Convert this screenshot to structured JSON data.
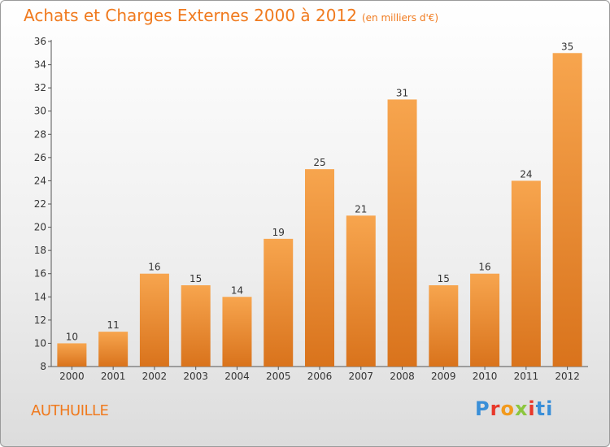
{
  "title": "Achats et Charges Externes 2000 à 2012",
  "subtitle": "(en milliers d'€)",
  "commune": "AUTHUILLE",
  "logo": {
    "p1": "P",
    "p2": "r",
    "p3": "o",
    "p4": "x",
    "p5": "i",
    "p6": "ti"
  },
  "colors": {
    "accent": "#f07a1e",
    "bar_top": "#f7a54e",
    "bar_bottom": "#d9731c"
  },
  "chart_data": {
    "type": "bar",
    "title": "Achats et Charges Externes 2000 à 2012",
    "subtitle": "(en milliers d'€)",
    "categories": [
      "2000",
      "2001",
      "2002",
      "2003",
      "2004",
      "2005",
      "2006",
      "2007",
      "2008",
      "2009",
      "2010",
      "2011",
      "2012"
    ],
    "values": [
      10,
      11,
      16,
      15,
      14,
      19,
      25,
      21,
      31,
      15,
      16,
      24,
      35
    ],
    "ylim": [
      8,
      36
    ],
    "yticks": [
      8,
      10,
      12,
      14,
      16,
      18,
      20,
      22,
      24,
      26,
      28,
      30,
      32,
      34,
      36
    ],
    "xlabel": "",
    "ylabel": "",
    "grid": false
  }
}
